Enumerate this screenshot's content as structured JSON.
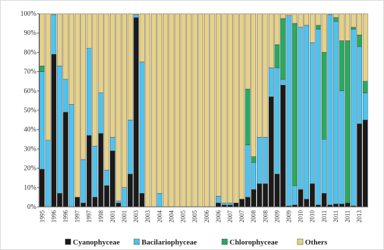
{
  "chart_data": {
    "type": "stacked_bar",
    "categories": [
      "1995",
      null,
      "1996",
      null,
      "1996",
      null,
      "1997",
      null,
      "1997",
      null,
      "1998",
      null,
      "2001",
      null,
      "2001",
      null,
      "2003",
      null,
      "2003",
      null,
      "2004",
      null,
      "2004",
      null,
      "2005",
      null,
      "2005",
      null,
      "2006",
      null,
      "2006",
      null,
      "2007",
      null,
      "2007",
      null,
      "2008",
      null,
      "2008",
      null,
      "2009",
      null,
      "2009",
      null,
      "2010",
      null,
      "2010",
      null,
      "2011",
      null,
      "2011",
      null,
      "2011",
      null,
      "2013",
      null
    ],
    "series": [
      {
        "name": "Cyanophyceae",
        "color": "#1a1a1a",
        "values": [
          19.5,
          0,
          79,
          7,
          49,
          0,
          5,
          2,
          37,
          5,
          38,
          11,
          29,
          2,
          0,
          17,
          98,
          7,
          0,
          0,
          0,
          0,
          0,
          0,
          0,
          0,
          0,
          0,
          0,
          0,
          2,
          1,
          1,
          2,
          4,
          5,
          9,
          12,
          12,
          57,
          17,
          63,
          0.5,
          1,
          9,
          4,
          12,
          1,
          7,
          1,
          1.5,
          1.5,
          2,
          0.5,
          43,
          45
        ]
      },
      {
        "name": "Bacilariophyceae",
        "color": "#4fc3ef",
        "values": [
          50.5,
          34.5,
          20.5,
          66,
          17,
          53,
          0,
          22.5,
          45,
          26.5,
          21,
          8,
          7,
          1,
          10,
          28,
          1.5,
          68,
          0,
          0,
          7,
          0,
          0,
          0,
          0,
          0,
          0,
          0,
          0,
          0,
          3.5,
          1,
          1,
          0,
          0,
          27,
          14,
          24,
          24,
          15,
          55,
          3,
          98.5,
          10,
          84,
          90,
          73,
          91,
          28,
          98.5,
          94.5,
          58.5,
          0,
          91.5,
          40,
          14
        ]
      },
      {
        "name": "Chlorophyceae",
        "color": "#2aa960",
        "values": [
          3,
          0,
          0,
          0,
          0,
          0,
          0,
          0,
          0,
          0,
          0,
          0,
          0,
          0,
          0,
          0,
          0,
          0,
          0,
          0,
          0,
          0,
          0,
          0,
          0,
          0,
          0,
          0,
          0,
          0,
          0,
          0,
          0,
          0,
          0,
          29,
          3,
          0,
          0,
          0,
          12,
          31.5,
          0,
          84,
          0,
          0,
          0,
          2,
          45,
          0,
          2,
          26,
          84,
          1,
          6,
          6
        ]
      },
      {
        "name": "Others",
        "color": "#e6d188",
        "values": [
          27,
          65.5,
          0.5,
          27,
          34,
          47,
          95,
          75.5,
          18,
          68.5,
          41,
          81,
          64,
          97,
          90,
          55,
          0.5,
          25,
          100,
          100,
          93,
          100,
          100,
          100,
          100,
          100,
          100,
          100,
          100,
          100,
          94.5,
          98,
          98,
          98,
          96,
          39,
          74,
          64,
          64,
          28,
          16,
          2.5,
          1,
          5,
          7,
          6,
          15,
          6,
          20,
          0.5,
          2,
          14,
          14,
          7,
          11,
          35
        ]
      }
    ],
    "ylim": [
      0,
      100
    ],
    "yticks": [
      {
        "value": 0,
        "label": "0%"
      },
      {
        "value": 10,
        "label": "10%"
      },
      {
        "value": 20,
        "label": "20%"
      },
      {
        "value": 30,
        "label": "30%"
      },
      {
        "value": 40,
        "label": "40%"
      },
      {
        "value": 50,
        "label": "50%"
      },
      {
        "value": 60,
        "label": "60%"
      },
      {
        "value": 70,
        "label": "70%"
      },
      {
        "value": 80,
        "label": "80%"
      },
      {
        "value": 90,
        "label": "90%"
      },
      {
        "value": 100,
        "label": "100%"
      }
    ],
    "legend": "bottom"
  }
}
